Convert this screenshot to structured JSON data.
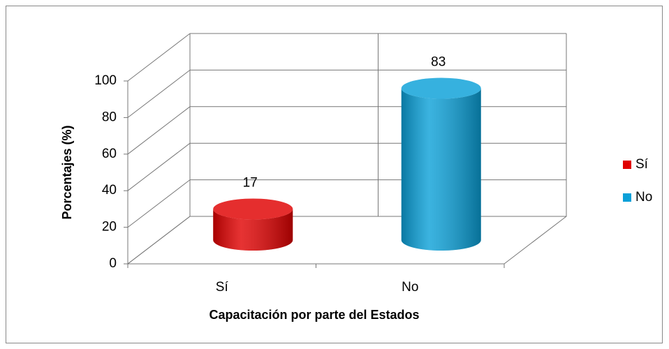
{
  "chart_data": {
    "type": "bar3d",
    "categories": [
      "Sí",
      "No"
    ],
    "values": [
      17,
      83
    ],
    "colors": [
      "#e00000",
      "#0aa0d8"
    ],
    "xlabel": "Capacitación por parte del Estados",
    "ylabel": "Porcentajes (%)",
    "ylim": [
      0,
      100
    ],
    "yticks": [
      0,
      20,
      40,
      60,
      80,
      100
    ],
    "grid": true,
    "legend": "right"
  }
}
